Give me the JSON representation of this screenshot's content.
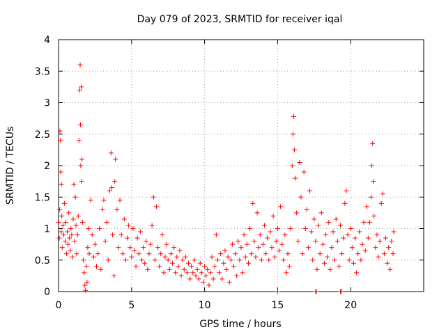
{
  "chart_data": {
    "type": "scatter",
    "title": "Day 079 of 2023, SRMTID for receiver iqal",
    "xlabel": "GPS time / hours",
    "ylabel": "SRMTID / TECUs",
    "xlim": [
      0,
      25
    ],
    "ylim": [
      0,
      4
    ],
    "xticks": [
      0,
      5,
      10,
      15,
      20
    ],
    "yticks": [
      0,
      0.5,
      1,
      1.5,
      2,
      2.5,
      3,
      3.5,
      4
    ],
    "xtick_labels": [
      "0",
      "5",
      "10",
      "15",
      "20"
    ],
    "ytick_labels": [
      "0",
      "0.5",
      "1",
      "1.5",
      "2",
      "2.5",
      "3",
      "3.5",
      "4"
    ],
    "grid": true,
    "marker": "+",
    "color": "#ff0000",
    "series": [
      {
        "name": "SRMTID",
        "points": [
          [
            0.02,
            1.1
          ],
          [
            0.05,
            0.85
          ],
          [
            0.08,
            1.3
          ],
          [
            0.1,
            2.55
          ],
          [
            0.12,
            2.4
          ],
          [
            0.15,
            1.9
          ],
          [
            0.18,
            0.95
          ],
          [
            0.2,
            1.7
          ],
          [
            0.22,
            1.2
          ],
          [
            0.25,
            0.7
          ],
          [
            0.3,
            1.05
          ],
          [
            0.35,
            0.9
          ],
          [
            0.4,
            1.4
          ],
          [
            0.45,
            0.8
          ],
          [
            0.5,
            1.1
          ],
          [
            0.55,
            0.6
          ],
          [
            0.6,
            0.95
          ],
          [
            0.65,
            0.75
          ],
          [
            0.7,
            1.25
          ],
          [
            0.75,
            0.85
          ],
          [
            0.8,
            0.65
          ],
          [
            0.85,
            1.0
          ],
          [
            0.9,
            0.9
          ],
          [
            0.95,
            0.55
          ],
          [
            1.0,
            1.15
          ],
          [
            1.05,
            1.7
          ],
          [
            1.1,
            0.8
          ],
          [
            1.15,
            1.5
          ],
          [
            1.2,
            1.05
          ],
          [
            1.25,
            0.6
          ],
          [
            1.3,
            0.9
          ],
          [
            1.35,
            1.2
          ],
          [
            1.4,
            2.4
          ],
          [
            1.45,
            3.2
          ],
          [
            1.48,
            3.6
          ],
          [
            1.5,
            2.65
          ],
          [
            1.52,
            2.0
          ],
          [
            1.55,
            3.25
          ],
          [
            1.58,
            1.75
          ],
          [
            1.6,
            2.1
          ],
          [
            1.65,
            1.1
          ],
          [
            1.7,
            0.5
          ],
          [
            1.75,
            0.3
          ],
          [
            1.8,
            0.1
          ],
          [
            1.85,
            0.02
          ],
          [
            1.9,
            0.4
          ],
          [
            1.95,
            0.15
          ],
          [
            2.0,
            0.7
          ],
          [
            2.05,
            1.0
          ],
          [
            2.1,
            0.6
          ],
          [
            2.2,
            1.45
          ],
          [
            2.3,
            0.9
          ],
          [
            2.4,
            0.55
          ],
          [
            2.5,
            0.75
          ],
          [
            2.6,
            0.4
          ],
          [
            2.7,
            0.6
          ],
          [
            2.8,
            1.0
          ],
          [
            2.9,
            0.35
          ],
          [
            3.0,
            1.3
          ],
          [
            3.1,
            1.45
          ],
          [
            3.2,
            0.8
          ],
          [
            3.3,
            1.1
          ],
          [
            3.4,
            0.5
          ],
          [
            3.5,
            1.6
          ],
          [
            3.6,
            2.2
          ],
          [
            3.65,
            1.65
          ],
          [
            3.7,
            0.9
          ],
          [
            3.8,
            0.25
          ],
          [
            3.85,
            1.75
          ],
          [
            3.9,
            2.1
          ],
          [
            4.0,
            1.3
          ],
          [
            4.1,
            0.7
          ],
          [
            4.2,
            1.45
          ],
          [
            4.3,
            0.9
          ],
          [
            4.4,
            0.6
          ],
          [
            4.5,
            1.15
          ],
          [
            4.6,
            0.5
          ],
          [
            4.7,
            0.85
          ],
          [
            4.8,
            1.05
          ],
          [
            4.9,
            0.7
          ],
          [
            5.0,
            0.55
          ],
          [
            5.1,
            1.0
          ],
          [
            5.2,
            0.65
          ],
          [
            5.3,
            0.4
          ],
          [
            5.4,
            0.85
          ],
          [
            5.5,
            0.6
          ],
          [
            5.6,
            0.95
          ],
          [
            5.7,
            0.5
          ],
          [
            5.8,
            0.7
          ],
          [
            5.9,
            0.45
          ],
          [
            6.0,
            0.8
          ],
          [
            6.1,
            0.35
          ],
          [
            6.2,
            0.6
          ],
          [
            6.3,
            0.75
          ],
          [
            6.4,
            1.05
          ],
          [
            6.5,
            1.5
          ],
          [
            6.6,
            0.5
          ],
          [
            6.7,
            1.35
          ],
          [
            6.8,
            0.7
          ],
          [
            6.9,
            0.4
          ],
          [
            7.0,
            0.6
          ],
          [
            7.1,
            0.9
          ],
          [
            7.2,
            0.3
          ],
          [
            7.3,
            0.55
          ],
          [
            7.4,
            0.75
          ],
          [
            7.5,
            0.5
          ],
          [
            7.6,
            0.35
          ],
          [
            7.7,
            0.6
          ],
          [
            7.8,
            0.45
          ],
          [
            7.9,
            0.7
          ],
          [
            8.0,
            0.3
          ],
          [
            8.1,
            0.55
          ],
          [
            8.2,
            0.4
          ],
          [
            8.3,
            0.65
          ],
          [
            8.4,
            0.25
          ],
          [
            8.5,
            0.5
          ],
          [
            8.6,
            0.35
          ],
          [
            8.7,
            0.55
          ],
          [
            8.8,
            0.3
          ],
          [
            8.9,
            0.45
          ],
          [
            9.0,
            0.2
          ],
          [
            9.1,
            0.4
          ],
          [
            9.2,
            0.3
          ],
          [
            9.3,
            0.5
          ],
          [
            9.4,
            0.25
          ],
          [
            9.5,
            0.35
          ],
          [
            9.6,
            0.2
          ],
          [
            9.7,
            0.45
          ],
          [
            9.8,
            0.3
          ],
          [
            9.9,
            0.15
          ],
          [
            10.0,
            0.4
          ],
          [
            10.1,
            0.25
          ],
          [
            10.2,
            0.35
          ],
          [
            10.3,
            0.1
          ],
          [
            10.4,
            0.3
          ],
          [
            10.5,
            0.55
          ],
          [
            10.6,
            0.2
          ],
          [
            10.7,
            0.4
          ],
          [
            10.8,
            0.9
          ],
          [
            10.9,
            0.5
          ],
          [
            11.0,
            0.3
          ],
          [
            11.1,
            0.6
          ],
          [
            11.2,
            0.2
          ],
          [
            11.3,
            0.45
          ],
          [
            11.4,
            0.65
          ],
          [
            11.5,
            0.35
          ],
          [
            11.6,
            0.55
          ],
          [
            11.7,
            0.15
          ],
          [
            11.8,
            0.5
          ],
          [
            11.9,
            0.75
          ],
          [
            12.0,
            0.4
          ],
          [
            12.1,
            0.6
          ],
          [
            12.2,
            0.25
          ],
          [
            12.3,
            0.8
          ],
          [
            12.4,
            0.5
          ],
          [
            12.5,
            0.7
          ],
          [
            12.6,
            0.3
          ],
          [
            12.7,
            0.9
          ],
          [
            12.8,
            0.55
          ],
          [
            12.9,
            0.75
          ],
          [
            13.0,
            0.45
          ],
          [
            13.1,
            1.0
          ],
          [
            13.2,
            0.6
          ],
          [
            13.3,
            1.4
          ],
          [
            13.4,
            0.8
          ],
          [
            13.5,
            0.55
          ],
          [
            13.6,
            1.25
          ],
          [
            13.7,
            0.7
          ],
          [
            13.8,
            0.9
          ],
          [
            13.9,
            0.5
          ],
          [
            14.0,
            0.75
          ],
          [
            14.1,
            1.05
          ],
          [
            14.2,
            0.6
          ],
          [
            14.3,
            0.85
          ],
          [
            14.4,
            0.5
          ],
          [
            14.5,
            0.95
          ],
          [
            14.6,
            0.7
          ],
          [
            14.7,
            1.2
          ],
          [
            14.8,
            0.55
          ],
          [
            14.9,
            0.8
          ],
          [
            15.0,
            1.0
          ],
          [
            15.1,
            0.65
          ],
          [
            15.2,
            1.35
          ],
          [
            15.3,
            0.75
          ],
          [
            15.4,
            0.5
          ],
          [
            15.5,
            0.9
          ],
          [
            15.6,
            0.3
          ],
          [
            15.7,
            0.6
          ],
          [
            15.8,
            0.4
          ],
          [
            15.9,
            1.0
          ],
          [
            16.0,
            2.0
          ],
          [
            16.05,
            2.5
          ],
          [
            16.1,
            2.78
          ],
          [
            16.15,
            2.25
          ],
          [
            16.2,
            1.8
          ],
          [
            16.3,
            1.25
          ],
          [
            16.4,
            0.8
          ],
          [
            16.5,
            2.05
          ],
          [
            16.6,
            1.5
          ],
          [
            16.7,
            0.6
          ],
          [
            16.8,
            1.9
          ],
          [
            16.9,
            1.0
          ],
          [
            17.0,
            1.3
          ],
          [
            17.1,
            0.7
          ],
          [
            17.2,
            1.6
          ],
          [
            17.3,
            0.95
          ],
          [
            17.4,
            0.5
          ],
          [
            17.5,
            1.15
          ],
          [
            17.6,
            0.8
          ],
          [
            17.7,
            0.35
          ],
          [
            17.8,
            1.05
          ],
          [
            17.9,
            0.6
          ],
          [
            18.0,
            1.25
          ],
          [
            18.1,
            0.75
          ],
          [
            18.2,
            0.45
          ],
          [
            18.3,
            0.9
          ],
          [
            18.4,
            0.55
          ],
          [
            18.5,
            1.1
          ],
          [
            18.6,
            0.35
          ],
          [
            18.7,
            0.7
          ],
          [
            18.8,
            0.95
          ],
          [
            18.9,
            0.5
          ],
          [
            19.0,
            1.15
          ],
          [
            19.1,
            0.8
          ],
          [
            19.2,
            0.4
          ],
          [
            19.3,
            1.05
          ],
          [
            19.4,
            0.6
          ],
          [
            19.5,
            0.85
          ],
          [
            19.6,
            1.4
          ],
          [
            19.7,
            1.6
          ],
          [
            19.8,
            0.9
          ],
          [
            19.9,
            0.5
          ],
          [
            20.0,
            1.0
          ],
          [
            20.1,
            0.7
          ],
          [
            20.2,
            0.45
          ],
          [
            20.3,
            0.85
          ],
          [
            20.4,
            0.3
          ],
          [
            20.5,
            0.6
          ],
          [
            20.6,
            0.95
          ],
          [
            20.7,
            0.5
          ],
          [
            20.8,
            0.75
          ],
          [
            20.9,
            1.1
          ],
          [
            21.0,
            0.65
          ],
          [
            21.1,
            1.35
          ],
          [
            21.2,
            0.85
          ],
          [
            21.3,
            1.1
          ],
          [
            21.4,
            1.5
          ],
          [
            21.45,
            2.0
          ],
          [
            21.5,
            2.35
          ],
          [
            21.55,
            1.75
          ],
          [
            21.6,
            1.2
          ],
          [
            21.7,
            0.7
          ],
          [
            21.8,
            0.9
          ],
          [
            21.9,
            0.55
          ],
          [
            22.0,
            0.8
          ],
          [
            22.1,
            1.4
          ],
          [
            22.2,
            1.55
          ],
          [
            22.3,
            0.6
          ],
          [
            22.4,
            0.85
          ],
          [
            22.5,
            0.45
          ],
          [
            22.6,
            0.7
          ],
          [
            22.7,
            0.35
          ],
          [
            22.8,
            0.8
          ],
          [
            22.9,
            0.6
          ],
          [
            22.95,
            0.95
          ],
          [
            15.0,
            0.0
          ],
          [
            17.6,
            0.0
          ],
          [
            17.65,
            0.0
          ],
          [
            19.3,
            0.0
          ],
          [
            19.35,
            0.0
          ]
        ]
      }
    ]
  }
}
